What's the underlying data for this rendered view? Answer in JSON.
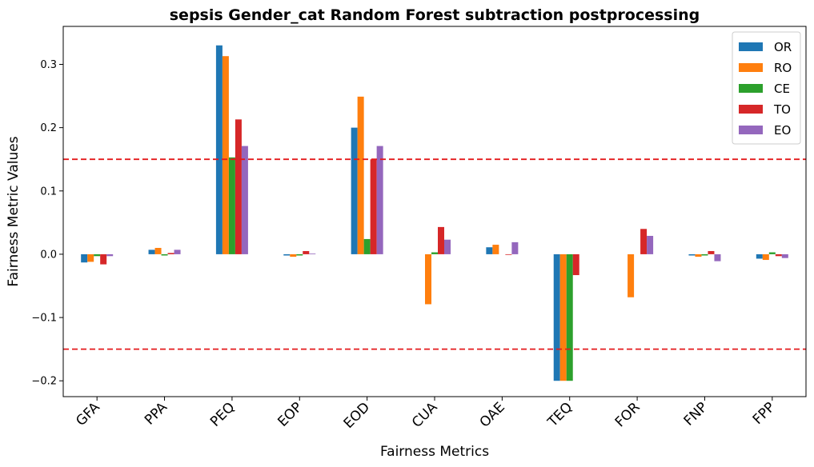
{
  "chart_data": {
    "type": "bar",
    "title": "sepsis Gender_cat Random Forest subtraction postprocessing",
    "xlabel": "Fairness Metrics",
    "ylabel": "Fairness Metric Values",
    "ylim": [
      -0.225,
      0.36
    ],
    "yticks": [
      -0.2,
      -0.1,
      0.0,
      0.1,
      0.2,
      0.3
    ],
    "ytick_labels": [
      "−0.2",
      "−0.1",
      "0.0",
      "0.1",
      "0.2",
      "0.3"
    ],
    "categories": [
      "GFA",
      "PPA",
      "PEQ",
      "EOP",
      "EOD",
      "CUA",
      "OAE",
      "TEQ",
      "FOR",
      "FNP",
      "FPP"
    ],
    "series": [
      {
        "name": "OR",
        "color": "#1f77b4",
        "values": [
          -0.013,
          0.007,
          0.33,
          -0.002,
          0.2,
          0.0,
          0.011,
          -0.2,
          0.0,
          -0.002,
          -0.007
        ]
      },
      {
        "name": "RO",
        "color": "#ff7f0e",
        "values": [
          -0.012,
          0.01,
          0.313,
          -0.004,
          0.249,
          -0.079,
          0.015,
          -0.2,
          -0.068,
          -0.004,
          -0.009
        ]
      },
      {
        "name": "CE",
        "color": "#2ca02c",
        "values": [
          -0.003,
          -0.002,
          0.153,
          -0.002,
          0.024,
          0.003,
          0.0,
          -0.2,
          0.0,
          -0.002,
          0.003
        ]
      },
      {
        "name": "TO",
        "color": "#d62728",
        "values": [
          -0.016,
          0.002,
          0.213,
          0.005,
          0.15,
          0.043,
          -0.001,
          -0.033,
          0.04,
          0.005,
          -0.003
        ]
      },
      {
        "name": "EO",
        "color": "#9467bd",
        "values": [
          -0.003,
          0.007,
          0.171,
          0.001,
          0.171,
          0.023,
          0.019,
          0.0,
          0.029,
          -0.011,
          -0.006
        ]
      }
    ],
    "reference_lines": [
      0.15,
      -0.15
    ],
    "reference_line_color": "#e41a1c",
    "legend_position": "top-right",
    "grid": false
  }
}
